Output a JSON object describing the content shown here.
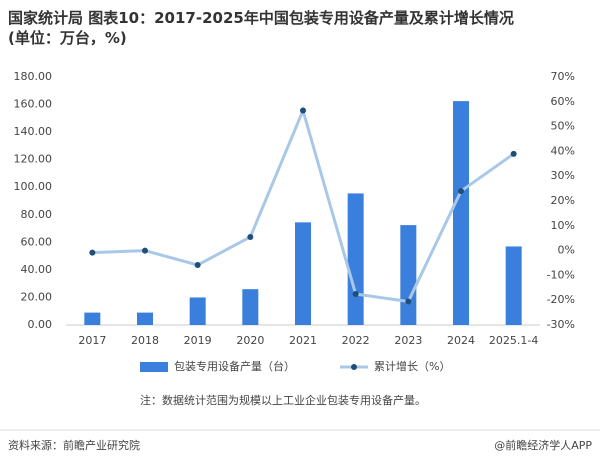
{
  "chart_data": {
    "type": "bar-line",
    "title": "国家统计局 图表10：2017-2025年中国包装专用设备产量及累计增长情况(单位：万台，%)",
    "categories": [
      "2017",
      "2018",
      "2019",
      "2020",
      "2021",
      "2022",
      "2023",
      "2024",
      "2025.1-4"
    ],
    "series": [
      {
        "name": "包装专用设备产量（台）",
        "type": "bar",
        "color": "#3a7fdc",
        "values": [
          9,
          9,
          20,
          26,
          74.5,
          95.5,
          72.5,
          162.5,
          57
        ]
      },
      {
        "name": "累计增长（%）",
        "type": "line",
        "axis": "y2",
        "color": "#a9c8e8",
        "marker_color": "#1f4e79",
        "values": [
          -0.8,
          0,
          -5.8,
          5.5,
          56.5,
          -17.5,
          -20.5,
          24,
          39
        ]
      }
    ],
    "ylim": [
      0,
      180
    ],
    "yticks": [
      {
        "value": 0,
        "label": "0.00"
      },
      {
        "value": 20,
        "label": "20.00"
      },
      {
        "value": 40,
        "label": "40.00"
      },
      {
        "value": 60,
        "label": "60.00"
      },
      {
        "value": 80,
        "label": "80.00"
      },
      {
        "value": 100,
        "label": "100.00"
      },
      {
        "value": 120,
        "label": "120.00"
      },
      {
        "value": 140,
        "label": "140.00"
      },
      {
        "value": 160,
        "label": "160.00"
      },
      {
        "value": 180,
        "label": "180.00"
      }
    ],
    "y2lim": [
      -30,
      70
    ],
    "y2ticks": [
      {
        "value": -30,
        "label": "-30%"
      },
      {
        "value": -20,
        "label": "-20%"
      },
      {
        "value": -10,
        "label": "-10%"
      },
      {
        "value": 0,
        "label": "0%"
      },
      {
        "value": 10,
        "label": "10%"
      },
      {
        "value": 20,
        "label": "20%"
      },
      {
        "value": 30,
        "label": "30%"
      },
      {
        "value": 40,
        "label": "40%"
      },
      {
        "value": 50,
        "label": "50%"
      },
      {
        "value": 60,
        "label": "60%"
      },
      {
        "value": 70,
        "label": "70%"
      }
    ],
    "note": "注：数据统计范围为规模以上工业企业包装专用设备产量。",
    "source": "资料来源：前瞻产业研究院",
    "brand": "@前瞻经济学人APP"
  }
}
